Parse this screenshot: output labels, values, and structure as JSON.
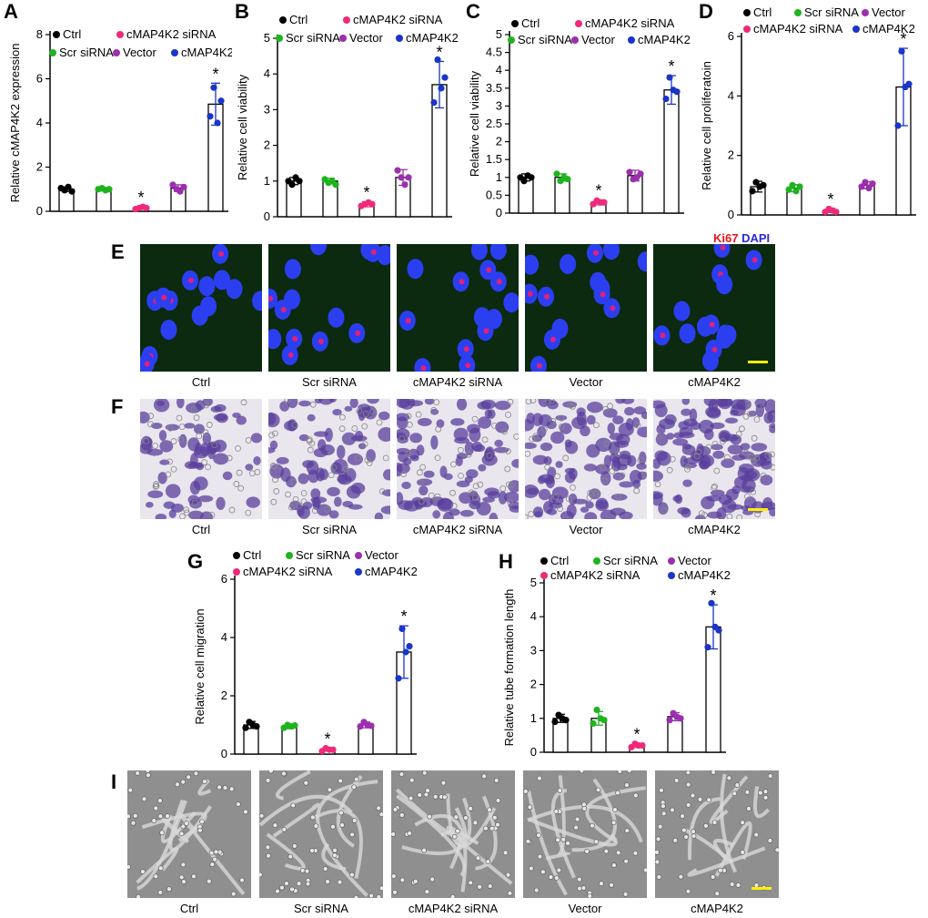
{
  "panels": {
    "A": "A",
    "B": "B",
    "C": "C",
    "D": "D",
    "E": "E",
    "F": "F",
    "G": "G",
    "H": "H",
    "I": "I"
  },
  "image_labels": [
    "Ctrl",
    "Scr siRNA",
    "cMAP4K2 siRNA",
    "Vector",
    "cMAP4K2"
  ],
  "ki67_label": "Ki67",
  "dapi_label": "DAPI",
  "colors": {
    "Ctrl": "#000000",
    "Scr siRNA": "#1fb41f",
    "cMAP4K2 siRNA": "#ee2a7b",
    "Vector": "#9b2fae",
    "cMAP4K2": "#1a35c8",
    "ki67": "#e8151b",
    "dapi": "#2a2ad6",
    "scalebar": "#ffee00"
  },
  "chart_data": [
    {
      "panel": "A",
      "type": "bar",
      "ylabel": "Relative cMAP4K2 expression",
      "ylim": [
        0,
        8
      ],
      "yticks": [
        0,
        2,
        4,
        6,
        8
      ],
      "categories": [
        "Ctrl",
        "Scr siRNA",
        "cMAP4K2 siRNA",
        "Vector",
        "cMAP4K2"
      ],
      "values": [
        1.0,
        1.0,
        0.15,
        1.05,
        4.85
      ],
      "errors": [
        0.1,
        0.08,
        0.05,
        0.15,
        0.95
      ],
      "points": [
        [
          1.05,
          0.95,
          1.1,
          0.9
        ],
        [
          1.0,
          1.05,
          0.95,
          1.0
        ],
        [
          0.1,
          0.15,
          0.2,
          0.15
        ],
        [
          1.2,
          1.0,
          0.9,
          1.1
        ],
        [
          4.3,
          5.6,
          4.0,
          5.0
        ]
      ],
      "significant": [
        false,
        false,
        true,
        false,
        true
      ],
      "legend": [
        "Ctrl",
        "cMAP4K2 siRNA",
        "Scr siRNA",
        "Vector",
        "cMAP4K2"
      ]
    },
    {
      "panel": "B",
      "type": "bar",
      "ylabel": "Relative cell viability",
      "ylim": [
        0,
        5
      ],
      "yticks": [
        0,
        1,
        2,
        3,
        4,
        5
      ],
      "categories": [
        "Ctrl",
        "Scr siRNA",
        "cMAP4K2 siRNA",
        "Vector",
        "cMAP4K2"
      ],
      "values": [
        1.0,
        1.0,
        0.35,
        1.1,
        3.7
      ],
      "errors": [
        0.1,
        0.08,
        0.07,
        0.22,
        0.65
      ],
      "points": [
        [
          1.0,
          0.9,
          1.1,
          1.0
        ],
        [
          1.05,
          0.95,
          1.0,
          0.9
        ],
        [
          0.3,
          0.35,
          0.4,
          0.35
        ],
        [
          1.3,
          1.1,
          0.9,
          1.1
        ],
        [
          3.2,
          4.4,
          3.6,
          3.9
        ]
      ],
      "significant": [
        false,
        false,
        true,
        false,
        true
      ],
      "legend": [
        "Ctrl",
        "cMAP4K2 siRNA",
        "Scr siRNA",
        "Vector",
        "cMAP4K2"
      ]
    },
    {
      "panel": "C",
      "type": "bar",
      "ylabel": "Relative cell viability",
      "ylim": [
        0,
        5
      ],
      "yticks": [
        0,
        0.5,
        1,
        1.5,
        2,
        2.5,
        3,
        3.5,
        4,
        4.5,
        5
      ],
      "categories": [
        "Ctrl",
        "Scr siRNA",
        "cMAP4K2 siRNA",
        "Vector",
        "cMAP4K2"
      ],
      "values": [
        1.0,
        1.0,
        0.3,
        1.05,
        3.45
      ],
      "errors": [
        0.1,
        0.1,
        0.07,
        0.15,
        0.4
      ],
      "points": [
        [
          1.0,
          0.9,
          1.05,
          1.0
        ],
        [
          1.1,
          0.9,
          1.0,
          0.95
        ],
        [
          0.25,
          0.35,
          0.3,
          0.3
        ],
        [
          1.15,
          0.95,
          1.0,
          1.1
        ],
        [
          3.2,
          3.8,
          3.45,
          3.4
        ]
      ],
      "significant": [
        false,
        false,
        true,
        false,
        true
      ],
      "legend": [
        "Ctrl",
        "cMAP4K2 siRNA",
        "Scr siRNA",
        "Vector",
        "cMAP4K2"
      ]
    },
    {
      "panel": "D",
      "type": "bar",
      "ylabel": "Relative cell proliferatoin",
      "ylim": [
        0,
        6
      ],
      "yticks": [
        0,
        2,
        4,
        6
      ],
      "categories": [
        "Ctrl",
        "Scr siRNA",
        "cMAP4K2 siRNA",
        "Vector",
        "cMAP4K2"
      ],
      "values": [
        0.95,
        0.9,
        0.15,
        1.0,
        4.3
      ],
      "errors": [
        0.18,
        0.12,
        0.07,
        0.12,
        1.3
      ],
      "points": [
        [
          0.8,
          1.1,
          0.95,
          1.0
        ],
        [
          0.85,
          1.0,
          0.8,
          0.95
        ],
        [
          0.1,
          0.2,
          0.15,
          0.1
        ],
        [
          0.95,
          1.1,
          0.9,
          1.05
        ],
        [
          3.0,
          5.5,
          4.3,
          4.4
        ]
      ],
      "significant": [
        false,
        false,
        true,
        false,
        true
      ],
      "legend": [
        "Ctrl",
        "Scr siRNA",
        "Vector",
        "cMAP4K2 siRNA",
        "cMAP4K2"
      ]
    },
    {
      "panel": "G",
      "type": "bar",
      "ylabel": "Relative cell migration",
      "ylim": [
        0,
        6
      ],
      "yticks": [
        0,
        2,
        4,
        6
      ],
      "categories": [
        "Ctrl",
        "Scr siRNA",
        "cMAP4K2 siRNA",
        "Vector",
        "cMAP4K2"
      ],
      "values": [
        1.0,
        0.95,
        0.15,
        1.0,
        3.5
      ],
      "errors": [
        0.12,
        0.08,
        0.05,
        0.1,
        0.9
      ],
      "points": [
        [
          0.9,
          1.1,
          1.0,
          0.95
        ],
        [
          0.9,
          1.0,
          0.95,
          0.98
        ],
        [
          0.1,
          0.2,
          0.15,
          0.15
        ],
        [
          0.95,
          1.1,
          1.0,
          0.97
        ],
        [
          2.6,
          4.3,
          3.5,
          3.7
        ]
      ],
      "significant": [
        false,
        false,
        true,
        false,
        true
      ],
      "legend": [
        "Ctrl",
        "Scr siRNA",
        "Vector",
        "cMAP4K2 siRNA",
        "cMAP4K2"
      ]
    },
    {
      "panel": "H",
      "type": "bar",
      "ylabel": "Relative tube formation length",
      "ylim": [
        0,
        5
      ],
      "yticks": [
        0,
        1,
        2,
        3,
        4,
        5
      ],
      "categories": [
        "Ctrl",
        "Scr siRNA",
        "cMAP4K2 siRNA",
        "Vector",
        "cMAP4K2"
      ],
      "values": [
        1.0,
        1.0,
        0.2,
        1.05,
        3.7
      ],
      "errors": [
        0.12,
        0.2,
        0.06,
        0.12,
        0.65
      ],
      "points": [
        [
          0.9,
          1.1,
          1.0,
          0.95
        ],
        [
          0.85,
          1.25,
          1.0,
          0.95
        ],
        [
          0.15,
          0.25,
          0.2,
          0.2
        ],
        [
          0.95,
          1.15,
          1.05,
          1.0
        ],
        [
          3.1,
          4.4,
          3.7,
          3.6
        ]
      ],
      "significant": [
        false,
        false,
        true,
        false,
        true
      ],
      "legend": [
        "Ctrl",
        "Scr siRNA",
        "Vector",
        "cMAP4K2 siRNA",
        "cMAP4K2"
      ]
    }
  ]
}
